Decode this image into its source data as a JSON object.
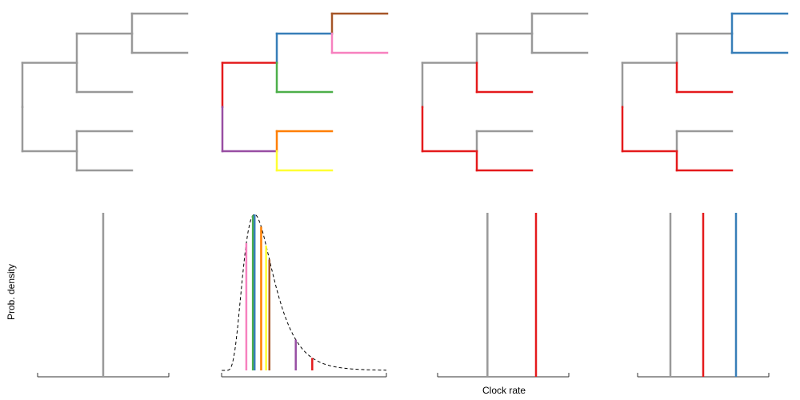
{
  "axes": {
    "ylabel": "Prob. density",
    "xlabel": "Clock rate"
  },
  "colors": {
    "gray": "#999999",
    "red": "#e41a1c",
    "blue": "#377eb8",
    "green": "#4daf4a",
    "purple": "#984ea3",
    "orange": "#ff7f00",
    "yellow": "#ffff33",
    "brown": "#a65628",
    "pink": "#f781bf"
  },
  "chart_data": [
    {
      "type": "diagram",
      "panel": 1,
      "model": "strict clock",
      "branch_colors": [
        "gray",
        "gray",
        "gray",
        "gray",
        "gray",
        "gray",
        "gray",
        "gray"
      ],
      "rates": [
        {
          "color": "gray",
          "value": 0.5
        }
      ],
      "xlim": [
        0,
        1
      ]
    },
    {
      "type": "diagram",
      "panel": 2,
      "model": "relaxed clock",
      "branch_colors": [
        "red",
        "purple",
        "blue",
        "green",
        "orange",
        "yellow",
        "brown",
        "pink"
      ],
      "rates": [
        {
          "color": "pink",
          "value": 0.15
        },
        {
          "color": "green",
          "value": 0.19
        },
        {
          "color": "blue",
          "value": 0.2
        },
        {
          "color": "orange",
          "value": 0.24
        },
        {
          "color": "yellow",
          "value": 0.27
        },
        {
          "color": "brown",
          "value": 0.29
        },
        {
          "color": "purple",
          "value": 0.45
        },
        {
          "color": "red",
          "value": 0.55
        }
      ],
      "density_curve": "lognormal",
      "xlim": [
        0,
        1
      ]
    },
    {
      "type": "diagram",
      "panel": 3,
      "model": "local clock (2 rates)",
      "branch_colors": [
        "gray",
        "red",
        "gray",
        "red",
        "gray",
        "red",
        "gray",
        "gray"
      ],
      "rates": [
        {
          "color": "gray",
          "value": 0.38
        },
        {
          "color": "red",
          "value": 0.75
        }
      ],
      "xlim": [
        0,
        1
      ]
    },
    {
      "type": "diagram",
      "panel": 4,
      "model": "local clock (3 rates)",
      "branch_colors": [
        "gray",
        "red",
        "gray",
        "red",
        "gray",
        "red",
        "blue",
        "blue"
      ],
      "rates": [
        {
          "color": "gray",
          "value": 0.25
        },
        {
          "color": "red",
          "value": 0.5
        },
        {
          "color": "blue",
          "value": 0.75
        }
      ],
      "xlim": [
        0,
        1
      ]
    }
  ]
}
